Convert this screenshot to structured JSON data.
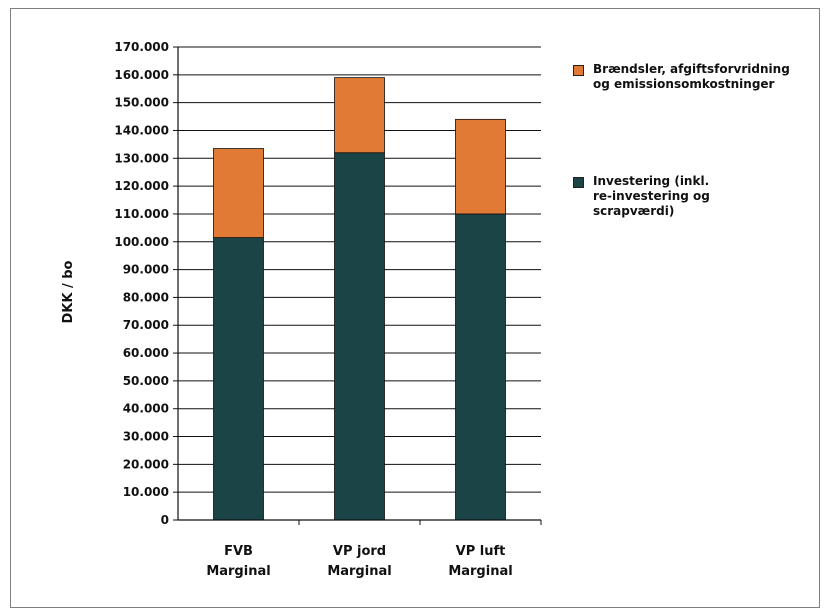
{
  "chart_data": {
    "type": "bar",
    "stacked": true,
    "title": "",
    "xlabel": "",
    "ylabel": "DKK / bo",
    "ylim": [
      0,
      170000
    ],
    "ytick_step": 10000,
    "ytick_labels": [
      "0",
      "10.000",
      "20.000",
      "30.000",
      "40.000",
      "50.000",
      "60.000",
      "70.000",
      "80.000",
      "90.000",
      "100.000",
      "110.000",
      "120.000",
      "130.000",
      "140.000",
      "150.000",
      "160.000",
      "170.000"
    ],
    "grid": true,
    "legend_position": "right",
    "categories": [
      [
        "FVB",
        "Marginal"
      ],
      [
        "VP jord",
        "Marginal"
      ],
      [
        "VP luft",
        "Marginal"
      ]
    ],
    "series": [
      {
        "name": "Investering (inkl. re-investering og scrapværdi)",
        "legend_lines": [
          "Investering (inkl.",
          "re-investering og",
          "scrapværdi)"
        ],
        "color": "#1b4446",
        "values": [
          101500,
          132000,
          110000
        ]
      },
      {
        "name": "Brændsler, afgiftsforvridning og emissionsomkostninger",
        "legend_lines": [
          "Brændsler, afgiftsforvridning",
          "og emissionsomkostninger"
        ],
        "color": "#e07a35",
        "values": [
          32000,
          27000,
          34000
        ]
      }
    ],
    "legend_order": [
      1,
      0
    ]
  }
}
